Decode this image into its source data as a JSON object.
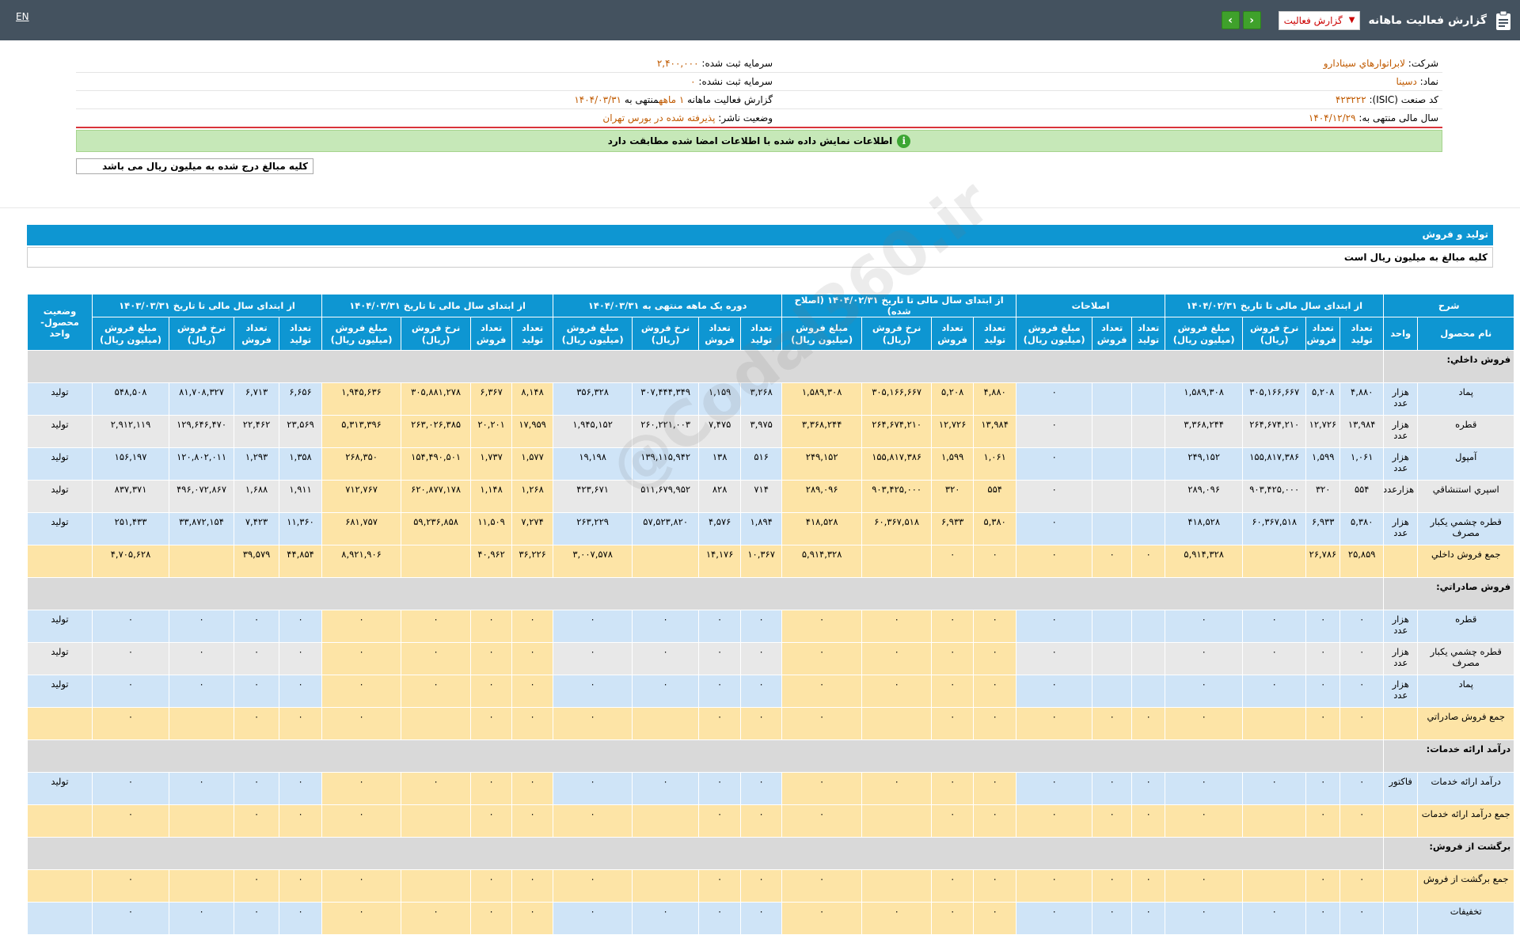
{
  "header": {
    "title": "گزارش فعالیت ماهانه",
    "report_type": "گزارش فعالیت",
    "lang": "EN"
  },
  "info": {
    "company_label": "شرکت:",
    "company": "لابراتوارهاي سينادارو",
    "symbol_label": "نماد:",
    "symbol": "دسینا",
    "isic_label": "کد صنعت (ISIC):",
    "isic": "۴۲۳۲۲۲",
    "fiscal_label": "سال مالی منتهی به:",
    "fiscal": "۱۴۰۴/۱۲/۲۹",
    "capital_label": "سرمایه ثبت شده:",
    "capital": "۲,۴۰۰,۰۰۰",
    "unreg_label": "سرمایه ثبت نشده:",
    "unreg": "۰",
    "report_label": "گزارش فعالیت ماهانه",
    "report_value": "۱ ماهه",
    "report_end_label": "منتهی به",
    "report_end": "۱۴۰۴/۰۳/۳۱",
    "status_label": "وضعیت ناشر:",
    "status": "پذیرفته شده در بورس تهران",
    "notice": "اطلاعات نمایش داده شده با اطلاعات امضا شده مطابقت دارد",
    "amounts_note": "کلیه مبالغ درج شده به میلیون ریال می باشد"
  },
  "section": {
    "title": "تولید و فروش",
    "subtitle": "کلیه مبالغ به میلیون ریال است"
  },
  "table": {
    "h_sharh": "شرح",
    "h_g1": "از ابتدای سال مالی تا تاریخ ۱۴۰۴/۰۲/۳۱",
    "h_g2": "اصلاحات",
    "h_g3": "از ابتدای سال مالی تا تاریخ ۱۴۰۴/۰۲/۳۱ (اصلاح شده)",
    "h_g4": "دوره یک ماهه منتهی به ۱۴۰۴/۰۳/۳۱",
    "h_g5": "از ابتدای سال مالی تا تاریخ ۱۴۰۴/۰۳/۳۱",
    "h_g6": "از ابتدای سال مالی تا تاریخ ۱۴۰۳/۰۳/۳۱",
    "h_status": "وضعیت محصول-واحد",
    "h_name": "نام محصول",
    "h_unit": "واحد",
    "h_prod": "تعداد تولید",
    "h_sales": "تعداد فروش",
    "h_rate": "نرخ فروش (ریال)",
    "h_amount": "مبلغ فروش (میلیون ریال)",
    "sec_domestic": "فروش داخلي:",
    "sec_export": "فروش صادراتي:",
    "sec_service": "درآمد ارائه خدمات:",
    "sec_return": "برگشت از فروش:",
    "domestic": [
      {
        "name": "پماد",
        "unit": "هزار عدد",
        "c": [
          "۴,۸۸۰",
          "۵,۲۰۸",
          "۳۰۵,۱۶۶,۶۶۷",
          "۱,۵۸۹,۳۰۸",
          "",
          "",
          "۰",
          "۴,۸۸۰",
          "۵,۲۰۸",
          "۳۰۵,۱۶۶,۶۶۷",
          "۱,۵۸۹,۳۰۸",
          "۳,۲۶۸",
          "۱,۱۵۹",
          "۳۰۷,۴۴۴,۳۴۹",
          "۳۵۶,۳۲۸",
          "۸,۱۴۸",
          "۶,۳۶۷",
          "۳۰۵,۸۸۱,۲۷۸",
          "۱,۹۴۵,۶۳۶",
          "۶,۶۵۶",
          "۶,۷۱۳",
          "۸۱,۷۰۸,۳۲۷",
          "۵۴۸,۵۰۸"
        ],
        "status": "تولید"
      },
      {
        "name": "قطره",
        "unit": "هزار عدد",
        "c": [
          "۱۳,۹۸۴",
          "۱۲,۷۲۶",
          "۲۶۴,۶۷۴,۲۱۰",
          "۳,۳۶۸,۲۴۴",
          "",
          "",
          "۰",
          "۱۳,۹۸۴",
          "۱۲,۷۲۶",
          "۲۶۴,۶۷۴,۲۱۰",
          "۳,۳۶۸,۲۴۴",
          "۳,۹۷۵",
          "۷,۴۷۵",
          "۲۶۰,۲۲۱,۰۰۳",
          "۱,۹۴۵,۱۵۲",
          "۱۷,۹۵۹",
          "۲۰,۲۰۱",
          "۲۶۳,۰۲۶,۳۸۵",
          "۵,۳۱۳,۳۹۶",
          "۲۳,۵۶۹",
          "۲۲,۴۶۲",
          "۱۲۹,۶۴۶,۴۷۰",
          "۲,۹۱۲,۱۱۹"
        ],
        "status": "تولید"
      },
      {
        "name": "آمپول",
        "unit": "هزار عدد",
        "c": [
          "۱,۰۶۱",
          "۱,۵۹۹",
          "۱۵۵,۸۱۷,۳۸۶",
          "۲۴۹,۱۵۲",
          "",
          "",
          "۰",
          "۱,۰۶۱",
          "۱,۵۹۹",
          "۱۵۵,۸۱۷,۳۸۶",
          "۲۴۹,۱۵۲",
          "۵۱۶",
          "۱۳۸",
          "۱۳۹,۱۱۵,۹۴۲",
          "۱۹,۱۹۸",
          "۱,۵۷۷",
          "۱,۷۳۷",
          "۱۵۴,۴۹۰,۵۰۱",
          "۲۶۸,۳۵۰",
          "۱,۳۵۸",
          "۱,۲۹۳",
          "۱۲۰,۸۰۲,۰۱۱",
          "۱۵۶,۱۹۷"
        ],
        "status": "تولید"
      },
      {
        "name": "اسپري استنشاقي",
        "unit": "هزارعدد",
        "c": [
          "۵۵۴",
          "۳۲۰",
          "۹۰۳,۴۲۵,۰۰۰",
          "۲۸۹,۰۹۶",
          "",
          "",
          "۰",
          "۵۵۴",
          "۳۲۰",
          "۹۰۳,۴۲۵,۰۰۰",
          "۲۸۹,۰۹۶",
          "۷۱۴",
          "۸۲۸",
          "۵۱۱,۶۷۹,۹۵۲",
          "۴۲۳,۶۷۱",
          "۱,۲۶۸",
          "۱,۱۴۸",
          "۶۲۰,۸۷۷,۱۷۸",
          "۷۱۲,۷۶۷",
          "۱,۹۱۱",
          "۱,۶۸۸",
          "۴۹۶,۰۷۲,۸۶۷",
          "۸۳۷,۳۷۱"
        ],
        "status": "تولید"
      },
      {
        "name": "قطره چشمي يكبار مصرف",
        "unit": "هزار عدد",
        "c": [
          "۵,۳۸۰",
          "۶,۹۳۳",
          "۶۰,۳۶۷,۵۱۸",
          "۴۱۸,۵۲۸",
          "",
          "",
          "۰",
          "۵,۳۸۰",
          "۶,۹۳۳",
          "۶۰,۳۶۷,۵۱۸",
          "۴۱۸,۵۲۸",
          "۱,۸۹۴",
          "۴,۵۷۶",
          "۵۷,۵۲۳,۸۲۰",
          "۲۶۳,۲۲۹",
          "۷,۲۷۴",
          "۱۱,۵۰۹",
          "۵۹,۲۳۶,۸۵۸",
          "۶۸۱,۷۵۷",
          "۱۱,۳۶۰",
          "۷,۴۲۳",
          "۳۳,۸۷۲,۱۵۴",
          "۲۵۱,۴۳۳"
        ],
        "status": "تولید"
      }
    ],
    "domestic_total": {
      "name": "جمع فروش داخلي",
      "c": [
        "۲۵,۸۵۹",
        "۲۶,۷۸۶",
        "",
        "۵,۹۱۴,۳۲۸",
        "۰",
        "۰",
        "۰",
        "۰",
        "۰",
        "",
        "۵,۹۱۴,۳۲۸",
        "۱۰,۳۶۷",
        "۱۴,۱۷۶",
        "",
        "۳,۰۰۷,۵۷۸",
        "۳۶,۲۲۶",
        "۴۰,۹۶۲",
        "",
        "۸,۹۲۱,۹۰۶",
        "۴۴,۸۵۴",
        "۳۹,۵۷۹",
        "",
        "۴,۷۰۵,۶۲۸"
      ]
    },
    "export": [
      {
        "name": "قطره",
        "unit": "هزار عدد",
        "status": "تولید"
      },
      {
        "name": "قطره چشمي يكبار مصرف",
        "unit": "هزار عدد",
        "status": "تولید"
      },
      {
        "name": "پماد",
        "unit": "هزار عدد",
        "status": "تولید"
      }
    ],
    "export_total": {
      "name": "جمع فروش صادراتي"
    },
    "service_row": {
      "name": "درآمد ارائه خدمات",
      "unit": "فاکتور",
      "status": "تولید"
    },
    "service_total": {
      "name": "جمع درآمد ارائه خدمات"
    },
    "return_total": {
      "name": "جمع برگشت از فروش"
    },
    "discount": {
      "name": "تخفیفات"
    },
    "zero": "۰"
  }
}
